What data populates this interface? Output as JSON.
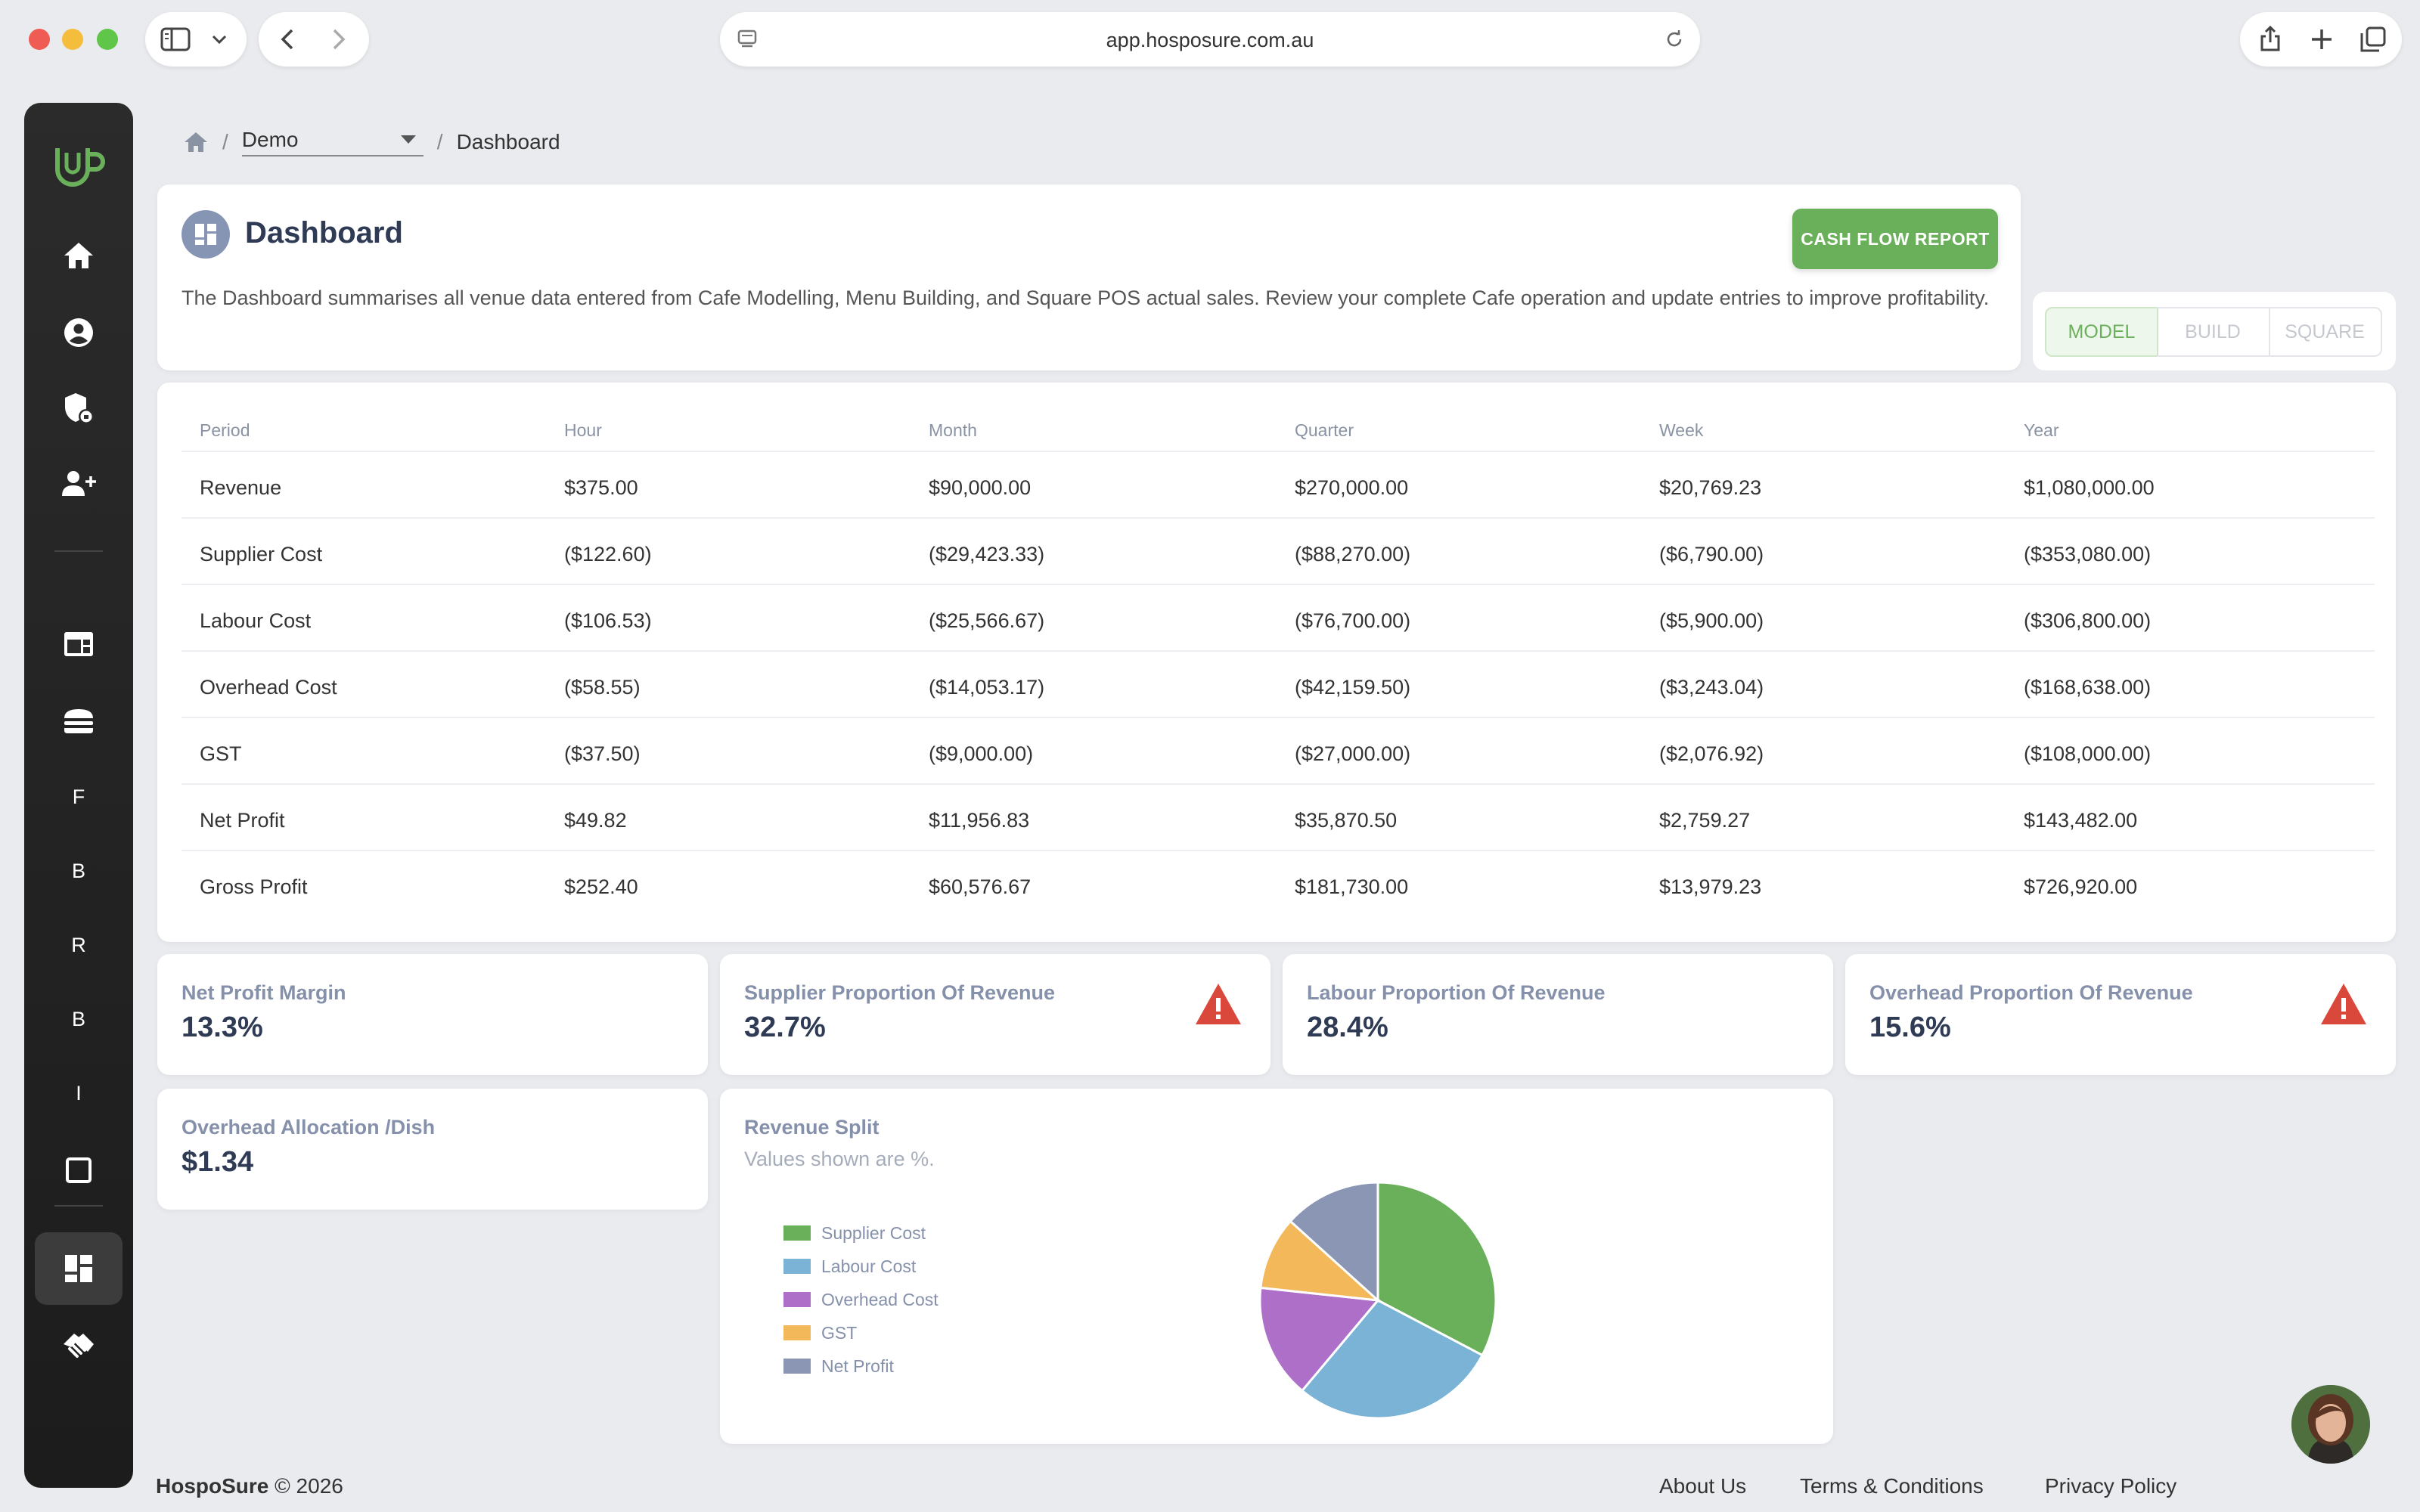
{
  "browser": {
    "url": "app.hosposure.com.au"
  },
  "sidebar": {
    "letters": [
      "F",
      "B",
      "R",
      "B",
      "I"
    ]
  },
  "breadcrumb": {
    "venue": "Demo",
    "current": "Dashboard"
  },
  "header": {
    "title": "Dashboard",
    "description": "The Dashboard summarises all venue data entered from Cafe Modelling, Menu Building, and Square POS actual sales. Review your complete Cafe operation and update entries to improve profitability.",
    "cashflow_label": "CASH FLOW REPORT"
  },
  "mode_tabs": [
    "MODEL",
    "BUILD",
    "SQUARE"
  ],
  "table": {
    "headers": [
      "Period",
      "Hour",
      "Month",
      "Quarter",
      "Week",
      "Year"
    ],
    "rows": [
      [
        "Revenue",
        "$375.00",
        "$90,000.00",
        "$270,000.00",
        "$20,769.23",
        "$1,080,000.00"
      ],
      [
        "Supplier Cost",
        "($122.60)",
        "($29,423.33)",
        "($88,270.00)",
        "($6,790.00)",
        "($353,080.00)"
      ],
      [
        "Labour Cost",
        "($106.53)",
        "($25,566.67)",
        "($76,700.00)",
        "($5,900.00)",
        "($306,800.00)"
      ],
      [
        "Overhead Cost",
        "($58.55)",
        "($14,053.17)",
        "($42,159.50)",
        "($3,243.04)",
        "($168,638.00)"
      ],
      [
        "GST",
        "($37.50)",
        "($9,000.00)",
        "($27,000.00)",
        "($2,076.92)",
        "($108,000.00)"
      ],
      [
        "Net Profit",
        "$49.82",
        "$11,956.83",
        "$35,870.50",
        "$2,759.27",
        "$143,482.00"
      ],
      [
        "Gross Profit",
        "$252.40",
        "$60,576.67",
        "$181,730.00",
        "$13,979.23",
        "$726,920.00"
      ]
    ]
  },
  "metrics": [
    {
      "label": "Net Profit Margin",
      "value": "13.3%",
      "warning": false
    },
    {
      "label": "Supplier Proportion Of Revenue",
      "value": "32.7%",
      "warning": true
    },
    {
      "label": "Labour Proportion Of Revenue",
      "value": "28.4%",
      "warning": false
    },
    {
      "label": "Overhead Proportion Of Revenue",
      "value": "15.6%",
      "warning": true
    },
    {
      "label": "Overhead Allocation /Dish",
      "value": "$1.34",
      "warning": false
    }
  ],
  "chart_data": {
    "type": "pie",
    "title": "Revenue Split",
    "subtitle": "Values shown are %.",
    "categories": [
      "Supplier Cost",
      "Labour Cost",
      "Overhead Cost",
      "GST",
      "Net Profit"
    ],
    "values": [
      32.7,
      28.4,
      15.6,
      10.0,
      13.3
    ],
    "colors": [
      "#6ab05a",
      "#7ab3d6",
      "#ae6fc8",
      "#f2b85a",
      "#8a96b4"
    ],
    "legend_position": "left"
  },
  "footer": {
    "brand": "HospoSure",
    "copyright": "© 2026",
    "links": [
      "About Us",
      "Terms & Conditions",
      "Privacy Policy"
    ]
  },
  "colors": {
    "accent": "#6ab05a",
    "warning": "#d9483b",
    "header_icon": "#8795b5"
  }
}
